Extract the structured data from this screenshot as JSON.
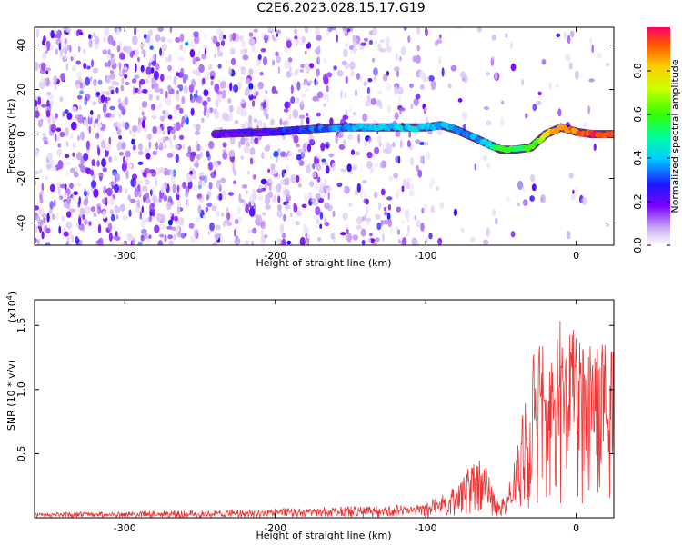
{
  "title": "C2E6.2023.028.15.17.G19",
  "chart_data": [
    {
      "type": "heatmap",
      "xlabel": "Height of straight line (km)",
      "ylabel": "Frequency (Hz)",
      "xlim": [
        -360,
        25
      ],
      "ylim": [
        -50,
        48
      ],
      "xticks": [
        -300,
        -200,
        -100,
        0
      ],
      "yticks": [
        -40,
        -20,
        0,
        20,
        40
      ],
      "colorbar": {
        "label": "Normalized spectral amplitude",
        "range": [
          0,
          1
        ],
        "ticks": [
          0.0,
          0.2,
          0.4,
          0.6,
          0.8
        ]
      },
      "ridge": {
        "x": [
          -240,
          -200,
          -180,
          -160,
          -140,
          -120,
          -100,
          -90,
          -80,
          -70,
          -60,
          -50,
          -40,
          -30,
          -20,
          -10,
          0,
          10,
          25
        ],
        "frequency": [
          0,
          1,
          2,
          3,
          3,
          3,
          3,
          4,
          2,
          -1,
          -4,
          -7,
          -7,
          -6,
          0,
          3,
          1,
          0,
          0
        ],
        "amplitude": [
          0.2,
          0.25,
          0.3,
          0.35,
          0.4,
          0.4,
          0.4,
          0.4,
          0.35,
          0.35,
          0.4,
          0.6,
          0.55,
          0.55,
          0.8,
          0.85,
          0.9,
          0.95,
          0.95
        ]
      }
    },
    {
      "type": "line",
      "xlabel": "Height of straight line (km)",
      "ylabel": "SNR (10 * v/v)",
      "y_multiplier": "(x10",
      "y_multiplier_exp": "4",
      "xlim": [
        -360,
        25
      ],
      "ylim": [
        0,
        1.7
      ],
      "xticks": [
        -300,
        -200,
        -100,
        0
      ],
      "yticks": [
        0.5,
        1.0,
        1.5
      ],
      "color": "#ee3333",
      "series": [
        {
          "x": [
            -360,
            -300,
            -250,
            -200,
            -150,
            -110,
            -100,
            -90,
            -80,
            -70,
            -65,
            -60,
            -55,
            -50,
            -45,
            -40,
            -35,
            -30,
            -25,
            -20,
            -15,
            -10,
            -5,
            0,
            5,
            10,
            15,
            20,
            25
          ],
          "y": [
            0.03,
            0.03,
            0.03,
            0.04,
            0.05,
            0.06,
            0.07,
            0.1,
            0.15,
            0.3,
            0.32,
            0.25,
            0.12,
            0.08,
            0.15,
            0.3,
            0.5,
            0.7,
            1.05,
            0.85,
            0.9,
            1.05,
            1.05,
            1.1,
            1.0,
            1.1,
            1.15,
            1.2,
            1.25
          ],
          "peak_y": [
            0.04,
            0.05,
            0.06,
            0.07,
            0.09,
            0.1,
            0.12,
            0.18,
            0.27,
            0.45,
            0.5,
            0.4,
            0.2,
            0.12,
            0.3,
            0.5,
            0.85,
            1.1,
            1.7,
            1.35,
            1.5,
            1.55,
            1.45,
            1.5,
            1.3,
            1.4,
            1.35,
            1.42,
            1.4
          ]
        }
      ]
    }
  ]
}
